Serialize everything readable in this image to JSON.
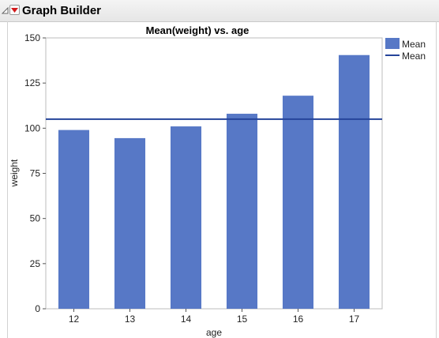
{
  "header": {
    "title": "Graph Builder"
  },
  "chart_data": {
    "type": "bar",
    "title": "Mean(weight) vs. age",
    "xlabel": "age",
    "ylabel": "weight",
    "categories": [
      "12",
      "13",
      "14",
      "15",
      "16",
      "17"
    ],
    "series": [
      {
        "name": "Mean",
        "type": "bar",
        "values": [
          99,
          94.5,
          101,
          108,
          118,
          140.5
        ]
      },
      {
        "name": "Mean",
        "type": "line",
        "values": [
          105,
          105,
          105,
          105,
          105,
          105
        ]
      }
    ],
    "ylim": [
      0,
      150
    ],
    "yticks": [
      0,
      25,
      50,
      75,
      100,
      125,
      150
    ],
    "grid": false,
    "legend_position": "right",
    "colors": {
      "bar": "#5778c6",
      "line": "#25449a"
    }
  }
}
